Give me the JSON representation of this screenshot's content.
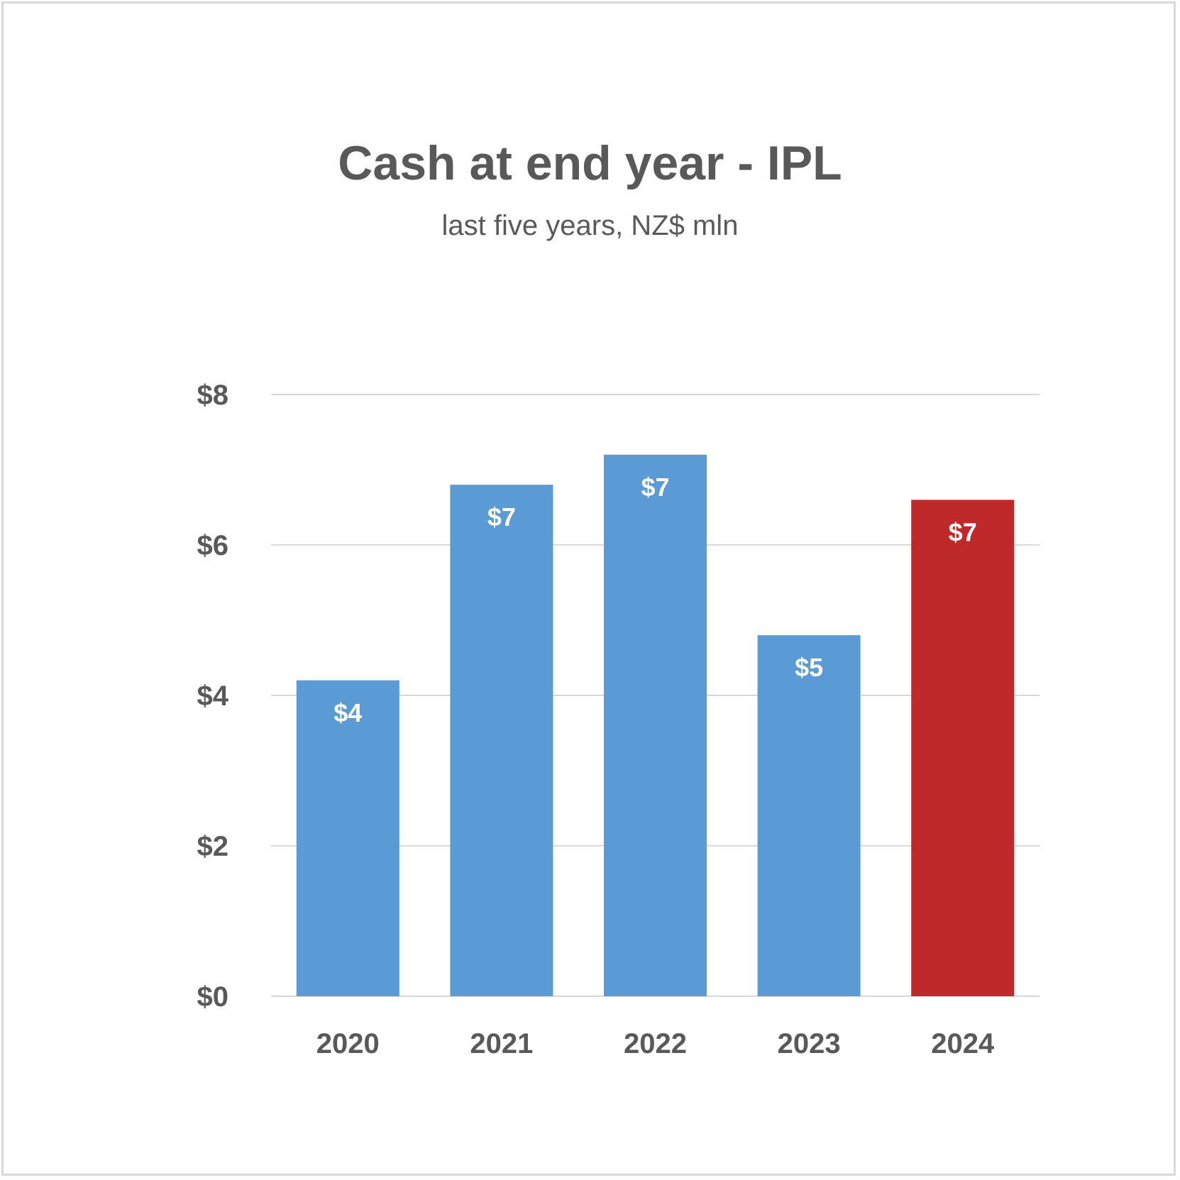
{
  "chart_data": {
    "type": "bar",
    "title": "Cash at end year - IPL",
    "subtitle": "last five years, NZ$ mln",
    "xlabel": "",
    "ylabel": "",
    "categories": [
      "2020",
      "2021",
      "2022",
      "2023",
      "2024"
    ],
    "values": [
      4.2,
      6.8,
      7.2,
      4.8,
      6.6
    ],
    "data_labels": [
      "$4",
      "$7",
      "$7",
      "$5",
      "$7"
    ],
    "bar_colors": [
      "#5b9bd5",
      "#5b9bd5",
      "#5b9bd5",
      "#5b9bd5",
      "#c0292a"
    ],
    "ylim": [
      0,
      8
    ],
    "yticks": [
      0,
      2,
      4,
      6,
      8
    ],
    "ytick_labels": [
      "$0",
      "$2",
      "$4",
      "$6",
      "$8"
    ],
    "grid": true,
    "legend": "none"
  },
  "colors": {
    "text": "#595959",
    "gridline": "#d9d9d9",
    "data_label": "#ffffff"
  }
}
